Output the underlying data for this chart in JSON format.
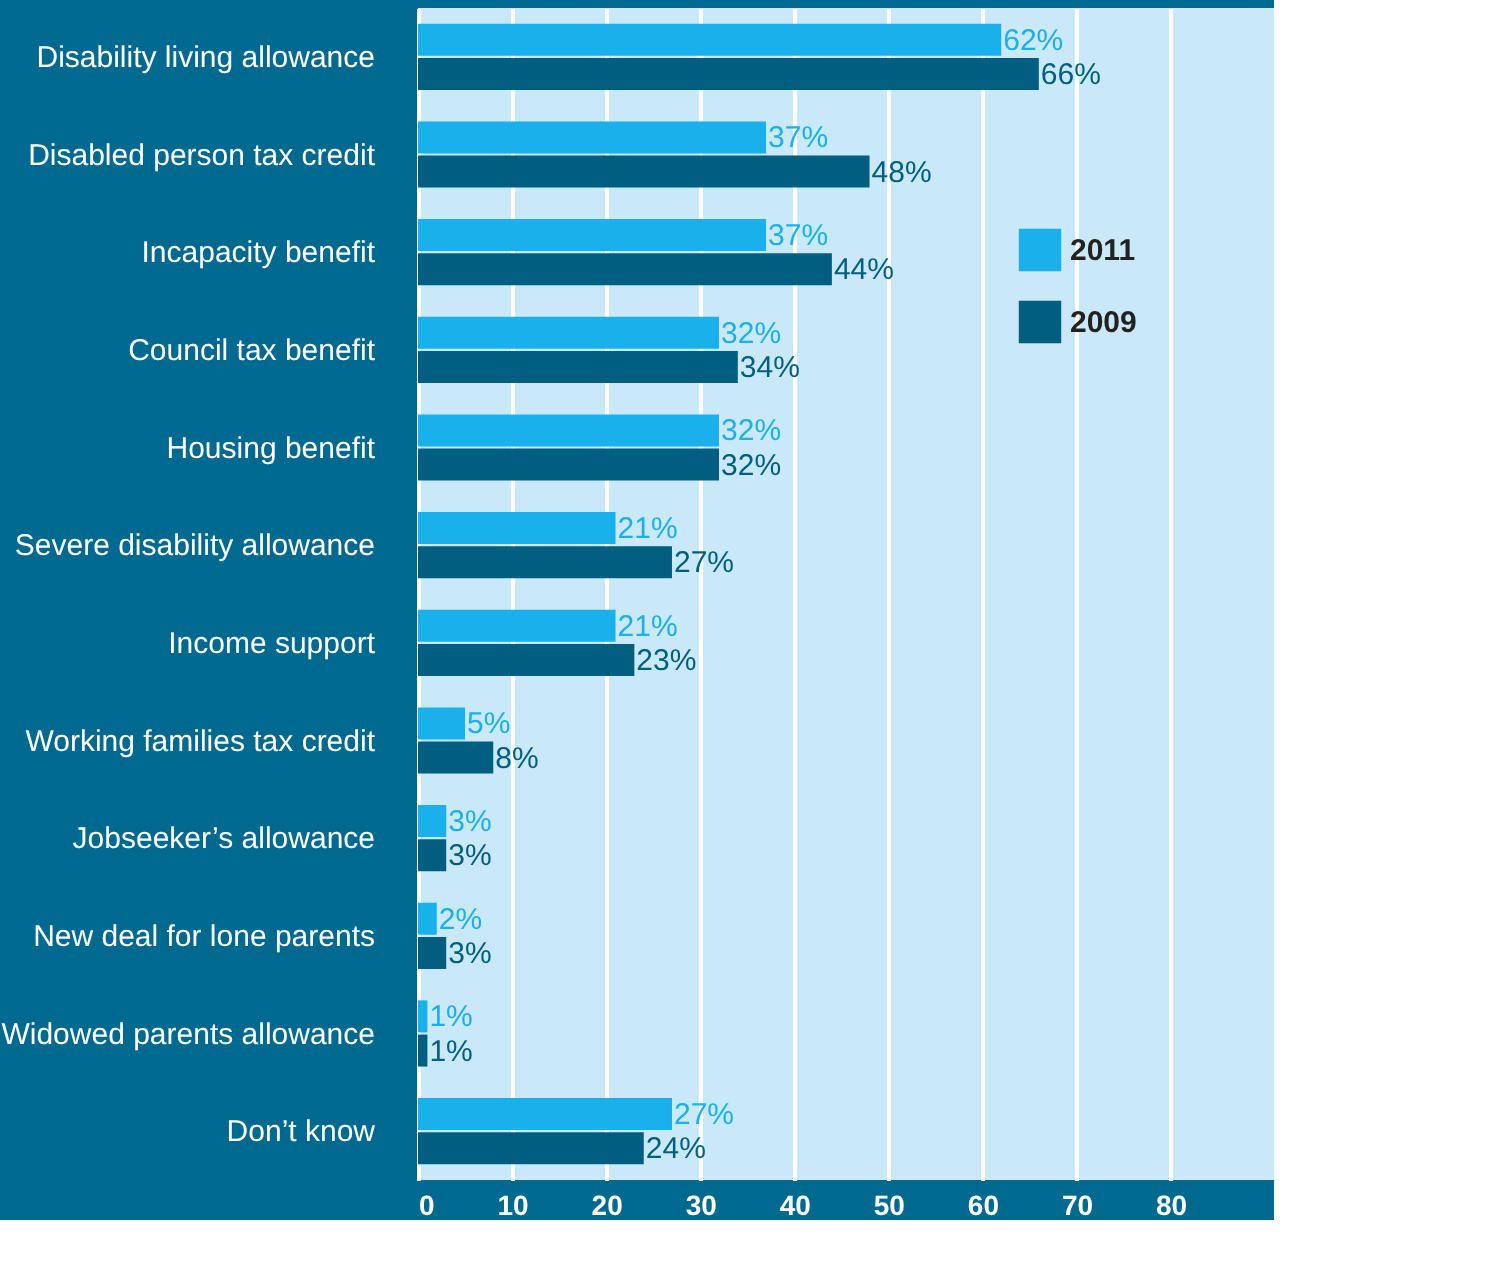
{
  "chart_data": {
    "type": "bar",
    "orientation": "horizontal",
    "categories": [
      "Disability living allowance",
      "Disabled person tax credit",
      "Incapacity benefit",
      "Council tax benefit",
      "Housing benefit",
      "Severe disability allowance",
      "Income support",
      "Working families tax credit",
      "Jobseeker’s allowance",
      "New deal for lone parents",
      "Widowed parents allowance",
      "Don’t know"
    ],
    "series": [
      {
        "name": "2011",
        "color": "#1ab0ec",
        "values": [
          62,
          37,
          37,
          32,
          32,
          21,
          21,
          5,
          3,
          2,
          1,
          27
        ],
        "value_labels": [
          "62%",
          "37%",
          "37%",
          "32%",
          "32%",
          "21%",
          "21%",
          "5%",
          "3%",
          "2%",
          "1%",
          "27%"
        ]
      },
      {
        "name": "2009",
        "color": "#005f80",
        "values": [
          66,
          48,
          44,
          34,
          32,
          27,
          23,
          8,
          3,
          3,
          1,
          24
        ],
        "value_labels": [
          "66%",
          "48%",
          "44%",
          "34%",
          "32%",
          "27%",
          "23%",
          "8%",
          "3%",
          "3%",
          "1%",
          "24%"
        ]
      }
    ],
    "xlim": [
      0,
      91
    ],
    "xticks": [
      0,
      10,
      20,
      30,
      40,
      50,
      60,
      70,
      80
    ],
    "grid": "x",
    "legend": "top right"
  }
}
